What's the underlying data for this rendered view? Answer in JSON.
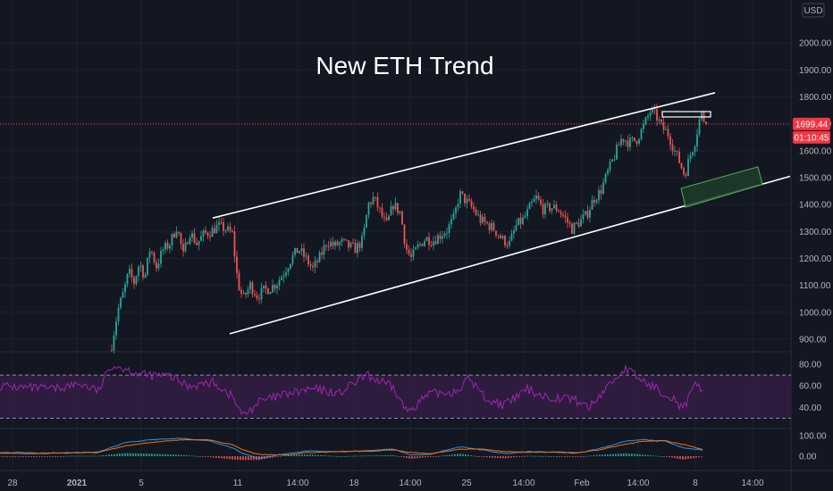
{
  "colors": {
    "background": "#131722",
    "grid": "#1e222d",
    "up": "#26a69a",
    "down": "#ef5350",
    "rsi": "#9c27b0",
    "rsi_band": "#3a1f4a",
    "macd": "#2196f3",
    "signal": "#ff6d00",
    "price_line": "#f23645",
    "channel": "#ffffff",
    "zone_fill": "#1f3d2c",
    "zone_border": "#4caf50"
  },
  "chart_data": {
    "type": "candlestick",
    "title": "New ETH Trend",
    "currency_label": "USD",
    "price_axis": {
      "ylim": [
        860,
        2100
      ],
      "ticks": [
        2000,
        1900,
        1800,
        1700,
        1600,
        1500,
        1400,
        1300,
        1200,
        1100,
        1000,
        900
      ],
      "tick_labels": [
        "2000.00",
        "1900.00",
        "1800.00",
        "1700.00",
        "1600.00",
        "1500.00",
        "1400.00",
        "1300.00",
        "1200.00",
        "1100.00",
        "1000.00",
        "900.00"
      ]
    },
    "last_price": {
      "value": 1699.44,
      "label": "1699.44",
      "countdown": "01:10:45"
    },
    "x_axis": {
      "range": [
        0,
        932
      ],
      "ticks": [
        {
          "x": 14,
          "label": "28",
          "bold": false
        },
        {
          "x": 86,
          "label": "2021",
          "bold": true
        },
        {
          "x": 158,
          "label": "5",
          "bold": false
        },
        {
          "x": 266,
          "label": "11",
          "bold": false
        },
        {
          "x": 333,
          "label": "14:00",
          "bold": false
        },
        {
          "x": 396,
          "label": "18",
          "bold": false
        },
        {
          "x": 459,
          "label": "14:00",
          "bold": false
        },
        {
          "x": 522,
          "label": "25",
          "bold": false
        },
        {
          "x": 586,
          "label": "14:00",
          "bold": false
        },
        {
          "x": 651,
          "label": "Feb",
          "bold": false
        },
        {
          "x": 714,
          "label": "14:00",
          "bold": false
        },
        {
          "x": 778,
          "label": "8",
          "bold": false
        },
        {
          "x": 842,
          "label": "14:00",
          "bold": false
        }
      ]
    },
    "price_anchors": [
      [
        125,
        880
      ],
      [
        132,
        1010
      ],
      [
        138,
        1070
      ],
      [
        144,
        1150
      ],
      [
        150,
        1110
      ],
      [
        156,
        1185
      ],
      [
        162,
        1130
      ],
      [
        168,
        1240
      ],
      [
        175,
        1170
      ],
      [
        182,
        1230
      ],
      [
        190,
        1255
      ],
      [
        198,
        1320
      ],
      [
        205,
        1210
      ],
      [
        212,
        1300
      ],
      [
        220,
        1255
      ],
      [
        228,
        1290
      ],
      [
        236,
        1300
      ],
      [
        244,
        1320
      ],
      [
        252,
        1310
      ],
      [
        260,
        1290
      ],
      [
        266,
        1110
      ],
      [
        272,
        1050
      ],
      [
        280,
        1100
      ],
      [
        288,
        1060
      ],
      [
        295,
        1080
      ],
      [
        302,
        1090
      ],
      [
        310,
        1110
      ],
      [
        318,
        1150
      ],
      [
        326,
        1200
      ],
      [
        334,
        1235
      ],
      [
        342,
        1200
      ],
      [
        350,
        1160
      ],
      [
        358,
        1205
      ],
      [
        366,
        1265
      ],
      [
        374,
        1245
      ],
      [
        382,
        1260
      ],
      [
        390,
        1245
      ],
      [
        398,
        1235
      ],
      [
        406,
        1270
      ],
      [
        412,
        1400
      ],
      [
        418,
        1425
      ],
      [
        425,
        1375
      ],
      [
        432,
        1320
      ],
      [
        440,
        1400
      ],
      [
        448,
        1370
      ],
      [
        454,
        1240
      ],
      [
        460,
        1200
      ],
      [
        468,
        1245
      ],
      [
        476,
        1275
      ],
      [
        484,
        1265
      ],
      [
        492,
        1285
      ],
      [
        500,
        1305
      ],
      [
        508,
        1350
      ],
      [
        514,
        1440
      ],
      [
        522,
        1410
      ],
      [
        530,
        1380
      ],
      [
        538,
        1340
      ],
      [
        546,
        1325
      ],
      [
        554,
        1305
      ],
      [
        562,
        1270
      ],
      [
        570,
        1255
      ],
      [
        578,
        1325
      ],
      [
        586,
        1345
      ],
      [
        594,
        1395
      ],
      [
        600,
        1425
      ],
      [
        608,
        1380
      ],
      [
        616,
        1390
      ],
      [
        624,
        1385
      ],
      [
        632,
        1350
      ],
      [
        640,
        1310
      ],
      [
        648,
        1335
      ],
      [
        656,
        1360
      ],
      [
        664,
        1420
      ],
      [
        672,
        1450
      ],
      [
        680,
        1520
      ],
      [
        688,
        1585
      ],
      [
        696,
        1650
      ],
      [
        704,
        1630
      ],
      [
        712,
        1640
      ],
      [
        720,
        1690
      ],
      [
        728,
        1750
      ],
      [
        734,
        1730
      ],
      [
        740,
        1690
      ],
      [
        748,
        1660
      ],
      [
        754,
        1605
      ],
      [
        760,
        1560
      ],
      [
        766,
        1510
      ],
      [
        772,
        1580
      ],
      [
        778,
        1640
      ],
      [
        784,
        1740
      ],
      [
        790,
        1699.44
      ]
    ],
    "channel_lines": [
      {
        "name": "upper",
        "p1": [
          238,
          1350
        ],
        "p2": [
          800,
          1815
        ]
      },
      {
        "name": "lower",
        "p1": [
          257,
          920
        ],
        "p2": [
          884,
          1505
        ]
      }
    ],
    "demand_zone": {
      "label": "",
      "corners": [
        [
          762,
          1460
        ],
        [
          848,
          1540
        ],
        [
          853,
          1475
        ],
        [
          767,
          1390
        ]
      ]
    },
    "rsi": {
      "levels": [
        80,
        60,
        40
      ],
      "level_labels": [
        "80.00",
        "60.00",
        "40.00"
      ],
      "band": [
        30,
        70
      ],
      "ylim": [
        22,
        90
      ],
      "anchors": [
        [
          0,
          60
        ],
        [
          30,
          58
        ],
        [
          60,
          57
        ],
        [
          90,
          62
        ],
        [
          110,
          55
        ],
        [
          125,
          80
        ],
        [
          140,
          76
        ],
        [
          160,
          70
        ],
        [
          190,
          69
        ],
        [
          210,
          60
        ],
        [
          240,
          63
        ],
        [
          260,
          50
        ],
        [
          272,
          32
        ],
        [
          290,
          45
        ],
        [
          320,
          52
        ],
        [
          350,
          57
        ],
        [
          380,
          53
        ],
        [
          410,
          70
        ],
        [
          440,
          58
        ],
        [
          455,
          36
        ],
        [
          480,
          52
        ],
        [
          510,
          55
        ],
        [
          525,
          67
        ],
        [
          545,
          47
        ],
        [
          565,
          42
        ],
        [
          590,
          57
        ],
        [
          610,
          50
        ],
        [
          640,
          48
        ],
        [
          660,
          40
        ],
        [
          680,
          60
        ],
        [
          700,
          76
        ],
        [
          720,
          64
        ],
        [
          740,
          55
        ],
        [
          752,
          50
        ],
        [
          764,
          38
        ],
        [
          778,
          60
        ],
        [
          786,
          57
        ]
      ]
    },
    "macd": {
      "ticks": [
        100,
        0
      ],
      "tick_labels": [
        "100.00",
        "0.00"
      ],
      "ylim": [
        -60,
        125
      ],
      "macd_anchors": [
        [
          0,
          15
        ],
        [
          40,
          12
        ],
        [
          80,
          18
        ],
        [
          110,
          20
        ],
        [
          140,
          65
        ],
        [
          170,
          80
        ],
        [
          205,
          86
        ],
        [
          235,
          74
        ],
        [
          260,
          40
        ],
        [
          272,
          12
        ],
        [
          290,
          -10
        ],
        [
          320,
          12
        ],
        [
          345,
          26
        ],
        [
          380,
          22
        ],
        [
          410,
          27
        ],
        [
          440,
          35
        ],
        [
          460,
          6
        ],
        [
          480,
          8
        ],
        [
          515,
          46
        ],
        [
          540,
          30
        ],
        [
          565,
          12
        ],
        [
          590,
          22
        ],
        [
          620,
          20
        ],
        [
          645,
          14
        ],
        [
          670,
          36
        ],
        [
          700,
          72
        ],
        [
          720,
          80
        ],
        [
          745,
          72
        ],
        [
          765,
          40
        ],
        [
          786,
          30
        ]
      ],
      "signal_anchors": [
        [
          0,
          18
        ],
        [
          40,
          16
        ],
        [
          80,
          16
        ],
        [
          110,
          18
        ],
        [
          140,
          50
        ],
        [
          170,
          68
        ],
        [
          205,
          80
        ],
        [
          235,
          78
        ],
        [
          260,
          55
        ],
        [
          272,
          30
        ],
        [
          290,
          8
        ],
        [
          320,
          6
        ],
        [
          345,
          18
        ],
        [
          380,
          22
        ],
        [
          410,
          24
        ],
        [
          440,
          30
        ],
        [
          460,
          18
        ],
        [
          480,
          12
        ],
        [
          515,
          34
        ],
        [
          540,
          34
        ],
        [
          565,
          22
        ],
        [
          590,
          20
        ],
        [
          620,
          20
        ],
        [
          645,
          17
        ],
        [
          670,
          30
        ],
        [
          700,
          58
        ],
        [
          720,
          72
        ],
        [
          745,
          74
        ],
        [
          765,
          56
        ],
        [
          786,
          32
        ]
      ]
    }
  }
}
